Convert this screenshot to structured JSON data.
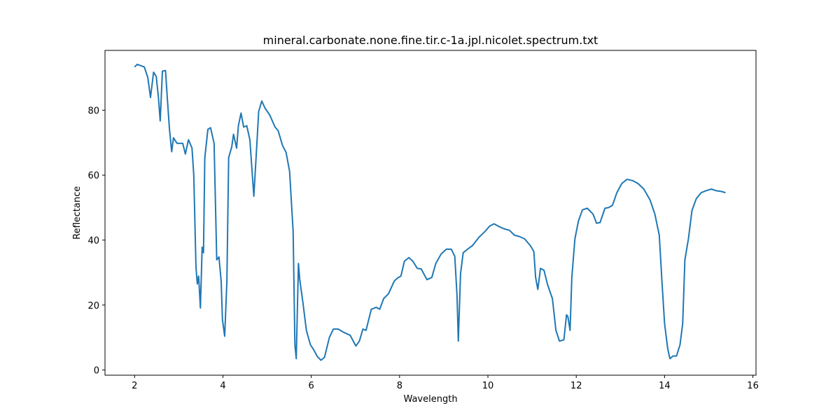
{
  "chart_data": {
    "type": "line",
    "title": "mineral.carbonate.none.fine.tir.c-1a.jpl.nicolet.spectrum.txt",
    "xlabel": "Wavelength",
    "ylabel": "Reflectance",
    "color": "#1f77b4",
    "x": [
      2.0,
      2.06,
      2.14,
      2.22,
      2.3,
      2.36,
      2.43,
      2.49,
      2.54,
      2.58,
      2.63,
      2.7,
      2.74,
      2.79,
      2.84,
      2.88,
      2.96,
      3.09,
      3.15,
      3.22,
      3.3,
      3.34,
      3.39,
      3.42,
      3.45,
      3.49,
      3.53,
      3.56,
      3.59,
      3.66,
      3.72,
      3.8,
      3.86,
      3.91,
      3.96,
      3.99,
      4.04,
      4.09,
      4.13,
      4.2,
      4.24,
      4.31,
      4.35,
      4.41,
      4.47,
      4.54,
      4.61,
      4.7,
      4.76,
      4.81,
      4.88,
      4.95,
      5.06,
      5.18,
      5.25,
      5.35,
      5.43,
      5.51,
      5.59,
      5.63,
      5.66,
      5.71,
      5.74,
      5.81,
      5.89,
      5.98,
      6.06,
      6.14,
      6.22,
      6.3,
      6.41,
      6.5,
      6.61,
      6.72,
      6.88,
      7.01,
      7.09,
      7.17,
      7.24,
      7.36,
      7.47,
      7.55,
      7.64,
      7.75,
      7.88,
      7.97,
      8.03,
      8.11,
      8.21,
      8.3,
      8.4,
      8.49,
      8.62,
      8.73,
      8.82,
      8.94,
      9.06,
      9.17,
      9.25,
      9.3,
      9.33,
      9.38,
      9.44,
      9.54,
      9.65,
      9.8,
      9.93,
      10.04,
      10.14,
      10.26,
      10.36,
      10.49,
      10.6,
      10.71,
      10.83,
      10.96,
      11.04,
      11.08,
      11.13,
      11.19,
      11.27,
      11.35,
      11.46,
      11.54,
      11.62,
      11.72,
      11.78,
      11.81,
      11.86,
      11.9,
      11.97,
      12.05,
      12.14,
      12.25,
      12.38,
      12.46,
      12.54,
      12.65,
      12.73,
      12.82,
      12.92,
      13.03,
      13.15,
      13.28,
      13.4,
      13.53,
      13.67,
      13.78,
      13.88,
      13.94,
      14.0,
      14.07,
      14.12,
      14.19,
      14.27,
      14.35,
      14.41,
      14.46,
      14.54,
      14.62,
      14.72,
      14.83,
      14.94,
      15.06,
      15.17,
      15.28,
      15.38
    ],
    "values": [
      93.3,
      94.1,
      93.7,
      93.3,
      90,
      83.9,
      91.7,
      90.4,
      83.9,
      76.7,
      92,
      92.2,
      83.9,
      74.1,
      67.2,
      71.5,
      69.8,
      69.8,
      66.5,
      70.9,
      68.3,
      60,
      31.7,
      26.5,
      28.9,
      19.1,
      37.8,
      36.1,
      65.4,
      74.1,
      74.6,
      69.8,
      33.9,
      34.8,
      27.4,
      15.4,
      10.4,
      27.4,
      65.4,
      68.7,
      72.6,
      68.3,
      75.2,
      79.1,
      74.8,
      75.2,
      70.9,
      53.5,
      67.6,
      79.6,
      82.8,
      80.7,
      78.5,
      74.8,
      73.7,
      69.1,
      67,
      61.1,
      42.6,
      7.8,
      3.5,
      32.8,
      27.8,
      20.9,
      12.2,
      7.8,
      6.1,
      4.1,
      3,
      3.9,
      10,
      12.6,
      12.6,
      11.7,
      10.7,
      7.4,
      8.9,
      12.6,
      12.2,
      18.7,
      19.3,
      18.7,
      22,
      23.5,
      27.4,
      28.5,
      28.9,
      33.5,
      34.6,
      33.5,
      31.3,
      31.1,
      27.8,
      28.5,
      32.8,
      35.7,
      37.2,
      37.2,
      35,
      23,
      8.9,
      29.6,
      36.1,
      37.2,
      38.3,
      40.9,
      42.6,
      44.3,
      45,
      44.1,
      43.5,
      43,
      41.5,
      41.1,
      40.4,
      38.3,
      36.5,
      28.5,
      24.8,
      31.3,
      30.7,
      26.3,
      22,
      12.2,
      8.9,
      9.3,
      17,
      16.5,
      12.2,
      28.5,
      40.4,
      45.9,
      49.3,
      49.8,
      48,
      45.2,
      45.4,
      49.8,
      50,
      50.7,
      54.6,
      57.4,
      58.7,
      58.3,
      57.4,
      55.7,
      52.4,
      48,
      41.5,
      27.4,
      14.3,
      6.7,
      3.5,
      4.3,
      4.3,
      7.8,
      14.3,
      33.9,
      40.4,
      49.1,
      52.8,
      54.6,
      55.2,
      55.7,
      55.2,
      55,
      54.6
    ],
    "xlim": [
      1.33,
      16.07
    ],
    "ylim": [
      -1.6,
      98.4
    ],
    "xticks": [
      2,
      4,
      6,
      8,
      10,
      12,
      14,
      16
    ],
    "yticks": [
      0,
      20,
      40,
      60,
      80
    ]
  }
}
